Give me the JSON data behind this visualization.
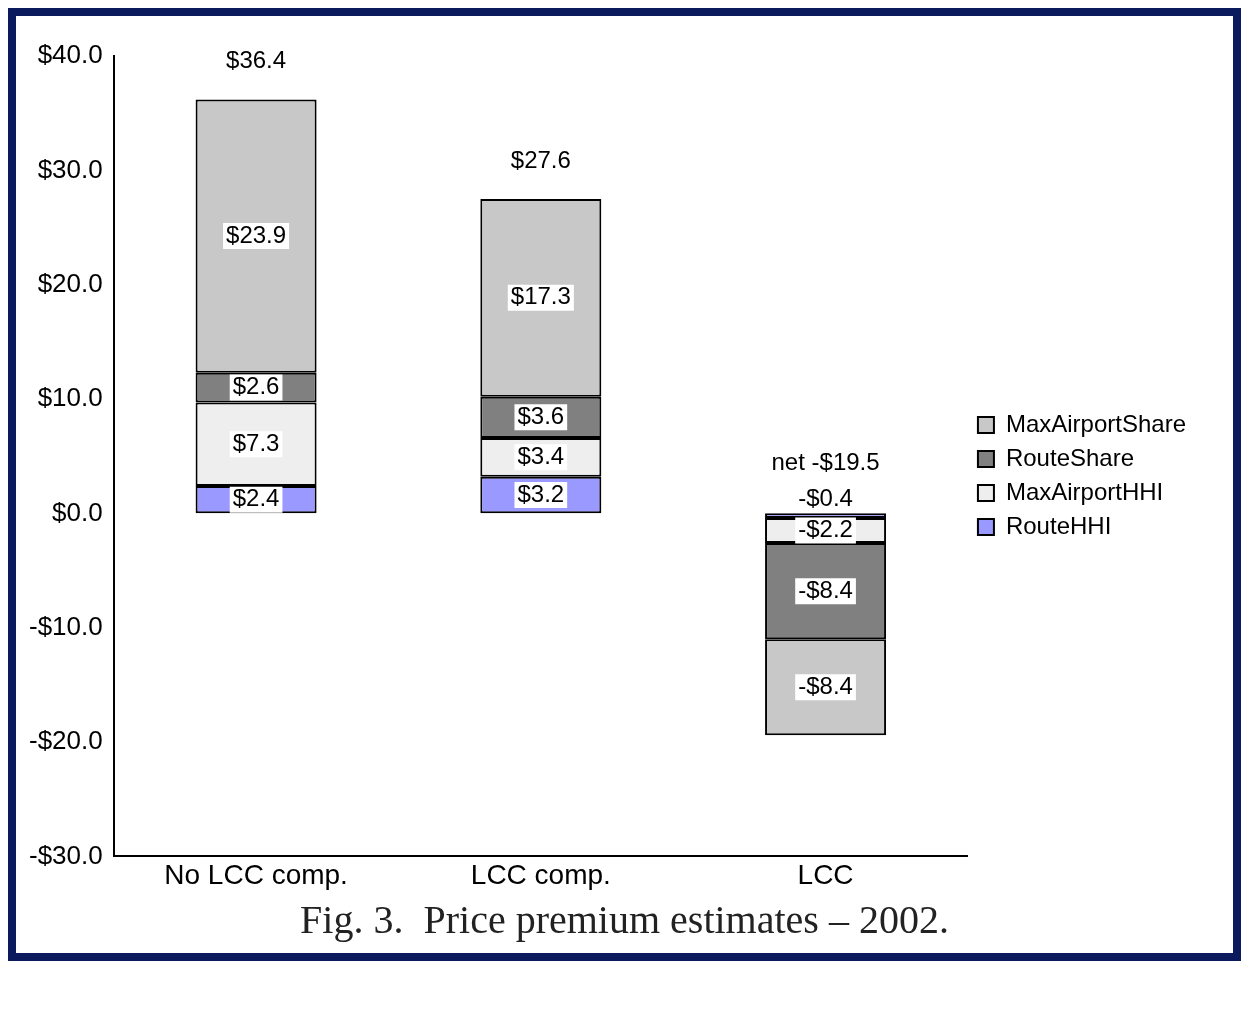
{
  "chart_data": {
    "type": "bar",
    "stacked": true,
    "categories": [
      "No LCC comp.",
      "LCC comp.",
      "LCC"
    ],
    "series": [
      {
        "name": "RouteHHI",
        "color": "#9999ff",
        "values": [
          2.4,
          3.2,
          -0.4
        ],
        "value_labels": [
          "$2.4",
          "$3.2",
          "-$0.4"
        ]
      },
      {
        "name": "MaxAirportHHI",
        "color": "#eeeeee",
        "values": [
          7.3,
          3.4,
          -2.2
        ],
        "value_labels": [
          "$7.3",
          "$3.4",
          "-$2.2"
        ]
      },
      {
        "name": "RouteShare",
        "color": "#808080",
        "values": [
          2.6,
          3.6,
          -8.4
        ],
        "value_labels": [
          "$2.6",
          "$3.6",
          "-$8.4"
        ]
      },
      {
        "name": "MaxAirportShare",
        "color": "#c8c8c8",
        "values": [
          23.9,
          17.3,
          -8.4
        ],
        "value_labels": [
          "$23.9",
          "$17.3",
          "-$8.4"
        ]
      }
    ],
    "totals": [
      "$36.4",
      "$27.6",
      "net -$19.5"
    ],
    "ylim": [
      -30,
      40
    ],
    "yticks": [
      {
        "value": -30,
        "label": "-$30.0"
      },
      {
        "value": -20,
        "label": "-$20.0"
      },
      {
        "value": -10,
        "label": "-$10.0"
      },
      {
        "value": 0,
        "label": "$0.0"
      },
      {
        "value": 10,
        "label": "$10.0"
      },
      {
        "value": 20,
        "label": "$20.0"
      },
      {
        "value": 30,
        "label": "$30.0"
      },
      {
        "value": 40,
        "label": "$40.0"
      }
    ],
    "grid": false,
    "legend": "right",
    "annotations": [
      "Fig. 3.  Price premium estimates – 2002."
    ]
  }
}
